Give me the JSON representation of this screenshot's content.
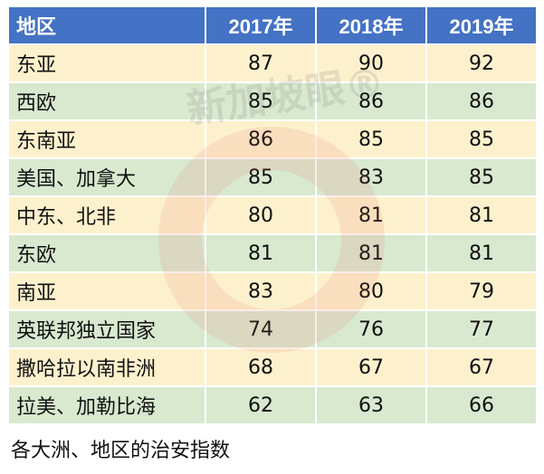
{
  "watermark": "新加坡眼®",
  "table": {
    "header": [
      "地区",
      "2017年",
      "2018年",
      "2019年"
    ],
    "rows": [
      [
        "东亚",
        87,
        90,
        92
      ],
      [
        "西欧",
        85,
        86,
        86
      ],
      [
        "东南亚",
        86,
        85,
        85
      ],
      [
        "美国、加拿大",
        85,
        83,
        85
      ],
      [
        "中东、北非",
        80,
        81,
        81
      ],
      [
        "东欧",
        81,
        81,
        81
      ],
      [
        "南亚",
        83,
        80,
        79
      ],
      [
        "英联邦独立国家",
        74,
        76,
        77
      ],
      [
        "撒哈拉以南非洲",
        68,
        67,
        67
      ],
      [
        "拉美、加勒比海",
        62,
        63,
        66
      ]
    ]
  },
  "caption": "各大洲、地区的治安指数"
}
